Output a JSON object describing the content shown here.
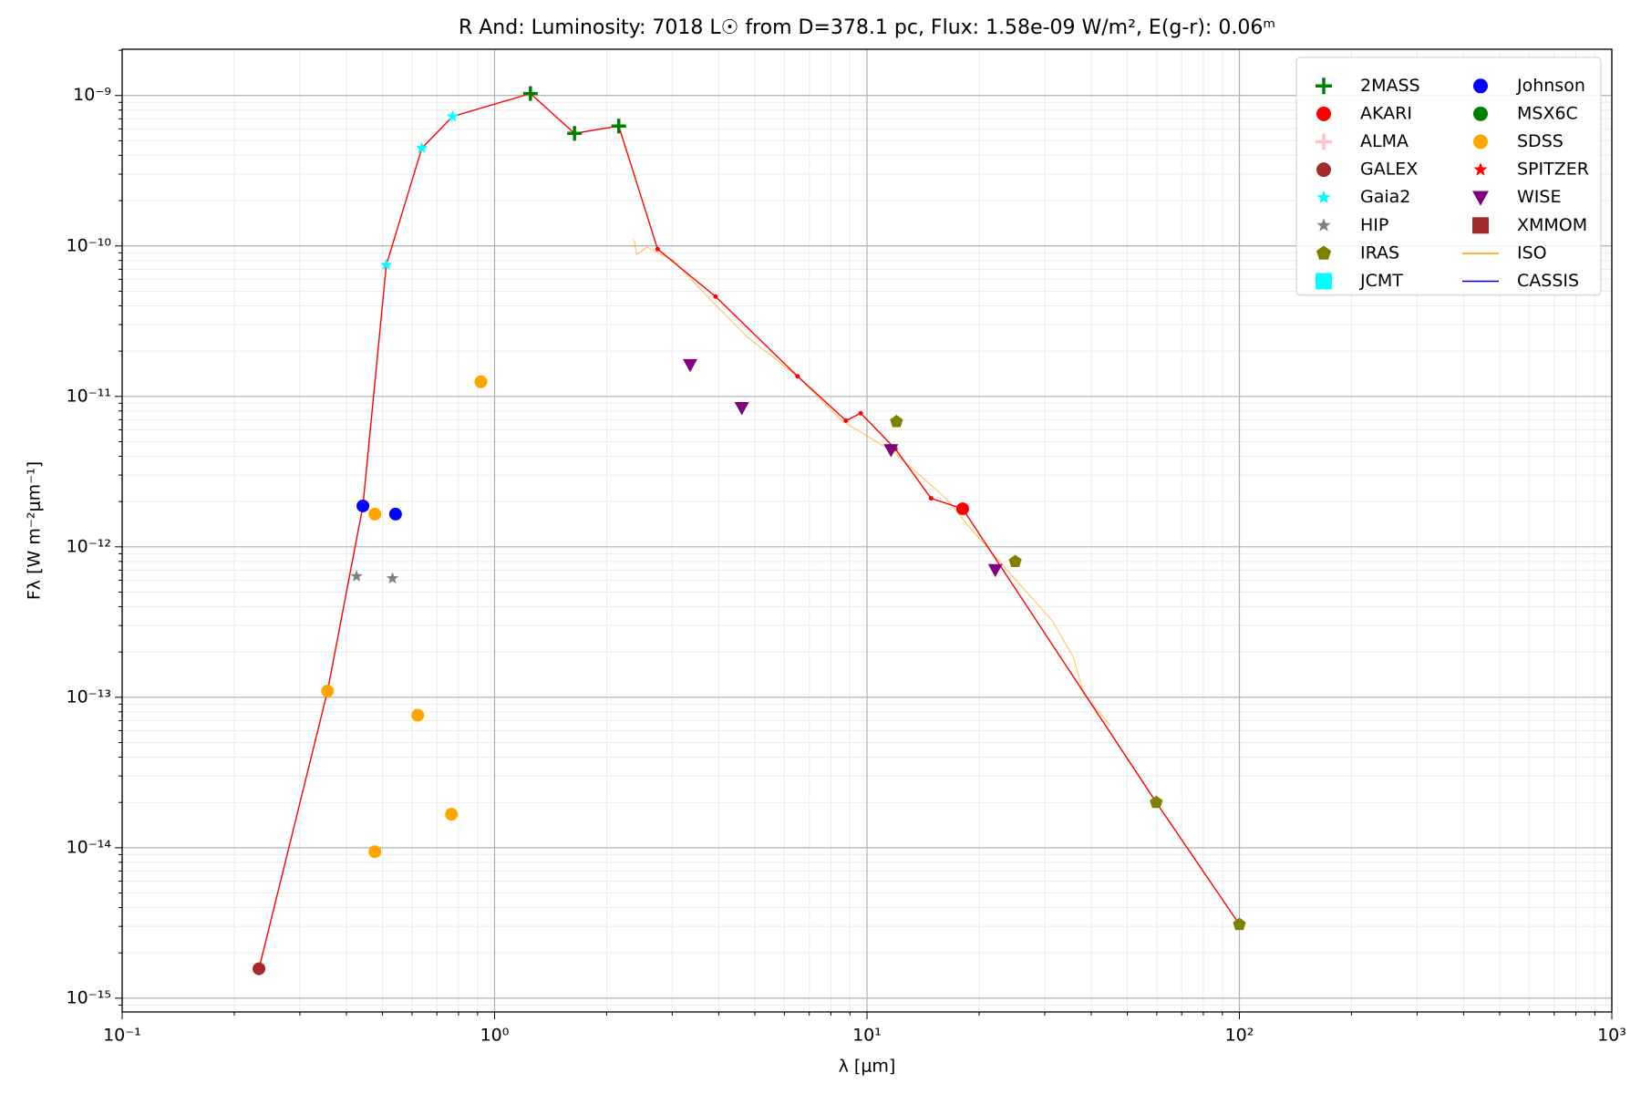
{
  "chart_data": {
    "type": "scatter",
    "title": "R And:  Luminosity: 7018 L☉ from D=378.1 pc, Flux: 1.58e-09 W/m², E(g-r): 0.06ᵐ",
    "x_label": "λ [μm]",
    "y_label": "Fλ [W m⁻²μm⁻¹]",
    "xscale": "log",
    "yscale": "log",
    "grid": true,
    "minor_grid": true,
    "legend": "upper right",
    "xlim": [
      0.1,
      1000
    ],
    "xticks": [
      {
        "value": 0.1,
        "label": "10⁻¹"
      },
      {
        "value": 1,
        "label": "10⁰"
      },
      {
        "value": 10,
        "label": "10¹"
      },
      {
        "value": 100,
        "label": "10²"
      },
      {
        "value": 1000,
        "label": "10³"
      }
    ],
    "ylim": [
      8.1e-16,
      2.03e-09
    ],
    "yticks": [
      {
        "value": 1e-09,
        "label": "10⁻⁹"
      },
      {
        "value": 1e-10,
        "label": "10⁻¹⁰"
      },
      {
        "value": 1e-11,
        "label": "10⁻¹¹"
      },
      {
        "value": 1e-12,
        "label": "10⁻¹²"
      },
      {
        "value": 1e-13,
        "label": "10⁻¹³"
      },
      {
        "value": 1e-14,
        "label": "10⁻¹⁴"
      },
      {
        "value": 1e-15,
        "label": "10⁻¹⁵"
      }
    ],
    "series": [
      {
        "name": "2MASS",
        "color": "#008000",
        "marker": "plus",
        "x": [
          1.248,
          1.639,
          2.155
        ],
        "values": [
          1.03e-09,
          5.6e-10,
          6.27e-10
        ]
      },
      {
        "name": "AKARI",
        "color": "#ff0000",
        "marker": "circle",
        "x": [
          18.07
        ],
        "values": [
          1.79e-12
        ]
      },
      {
        "name": "ALMA",
        "color": "#ffc0cb",
        "marker": "plus",
        "x": [],
        "values": []
      },
      {
        "name": "GALEX",
        "color": "#a52a2a",
        "marker": "circle",
        "x": [
          0.233
        ],
        "values": [
          1.57e-15
        ]
      },
      {
        "name": "Gaia2",
        "color": "#00ffff",
        "marker": "star",
        "x": [
          0.512,
          0.638,
          0.771
        ],
        "values": [
          7.48e-11,
          4.47e-10,
          7.25e-10
        ]
      },
      {
        "name": "HIP",
        "color": "#808080",
        "marker": "star",
        "x": [
          0.426,
          0.532
        ],
        "values": [
          6.37e-13,
          6.17e-13
        ]
      },
      {
        "name": "IRAS",
        "color": "#808000",
        "marker": "pentagon",
        "x": [
          12.0,
          25.0,
          59.8,
          100
        ],
        "values": [
          6.79e-12,
          7.98e-13,
          2e-14,
          3.09e-15
        ]
      },
      {
        "name": "JCMT",
        "color": "#00ffff",
        "marker": "square",
        "x": [],
        "values": []
      },
      {
        "name": "Johnson",
        "color": "#0000ff",
        "marker": "circle",
        "x": [
          0.443,
          0.542
        ],
        "values": [
          1.87e-12,
          1.65e-12
        ]
      },
      {
        "name": "MSX6C",
        "color": "#008000",
        "marker": "circle",
        "x": [],
        "values": []
      },
      {
        "name": "SDSS",
        "color": "#ffa500",
        "marker": "circle",
        "x": [
          0.356,
          0.477,
          0.622,
          0.766,
          0.919,
          0.477
        ],
        "values": [
          1.1e-13,
          1.65e-12,
          7.6e-14,
          1.67e-14,
          1.25e-11,
          9.4e-15
        ]
      },
      {
        "name": "SPITZER",
        "color": "#ff0000",
        "marker": "star",
        "x": [],
        "values": []
      },
      {
        "name": "WISE",
        "color": "#800080",
        "marker": "triangle-down",
        "x": [
          3.35,
          4.61,
          11.6,
          22.1
        ],
        "values": [
          1.62e-11,
          8.38e-12,
          4.4e-12,
          7.02e-13
        ]
      },
      {
        "name": "XMMOM",
        "color": "#a52a2a",
        "marker": "square",
        "x": [],
        "values": []
      },
      {
        "name": "ISO",
        "color": "#ffa500",
        "marker": "line",
        "x": [
          2.37,
          2.41,
          2.57,
          3.02,
          3.92,
          4.76,
          6.59,
          8.55,
          11.8,
          16.4,
          18.7,
          24.2,
          31.4,
          35.8,
          38.2,
          45.0
        ],
        "values": [
          1.1e-10,
          8.8e-11,
          9.8e-11,
          8e-11,
          4.06e-11,
          2.5e-11,
          1.32e-11,
          6.9e-12,
          4.26e-12,
          2.07e-12,
          1.38e-12,
          6.68e-13,
          3.24e-13,
          1.85e-13,
          1.05e-13,
          6.5e-14
        ]
      },
      {
        "name": "CASSIS",
        "color": "#0000cd",
        "marker": "line",
        "x": [],
        "values": []
      },
      {
        "color": "#ff0000",
        "marker": "line-dots",
        "x": [
          0.233,
          0.356,
          0.443,
          0.512,
          0.638,
          0.771,
          1.248,
          1.639,
          2.155,
          2.74,
          3.92,
          6.51,
          8.78,
          9.62,
          11.92,
          14.86,
          18.07,
          59.8,
          100
        ],
        "values": [
          1.57e-15,
          1.1e-13,
          1.87e-12,
          7.48e-11,
          4.47e-10,
          7.25e-10,
          1.03e-09,
          5.6e-10,
          6.27e-10,
          9.53e-11,
          4.61e-11,
          1.36e-11,
          6.9e-12,
          7.73e-12,
          4.47e-12,
          2.1e-12,
          1.79e-12,
          2e-14,
          3.09e-15
        ]
      }
    ]
  }
}
